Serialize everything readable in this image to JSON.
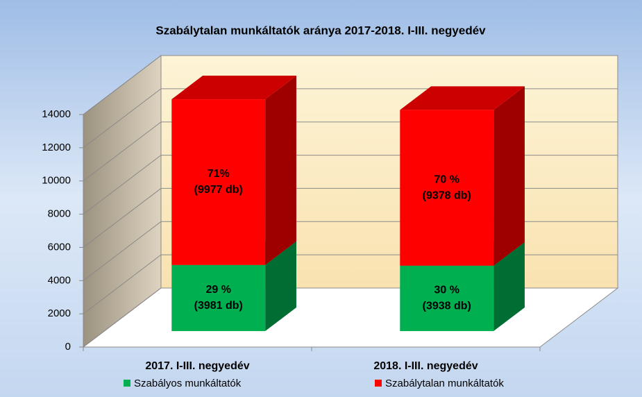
{
  "chart_data": {
    "type": "bar3d_stacked",
    "title": "Szabálytalan munkáltatók aránya 2017-2018. I-III. negyedév",
    "categories": [
      "2017. I-III. negyedév",
      "2018. I-III. negyedév"
    ],
    "series": [
      {
        "name": "Szabályos munkáltatók",
        "color": "#00b050",
        "values": [
          3981,
          3938
        ],
        "value_labels": [
          [
            "29 %",
            "(3981 db)"
          ],
          [
            "30 %",
            "(3938 db)"
          ]
        ]
      },
      {
        "name": "Szabálytalan munkáltatók",
        "color": "#ff0000",
        "values": [
          9977,
          9378
        ],
        "value_labels": [
          [
            "71%",
            "(9977 db)"
          ],
          [
            "70 %",
            "(9378 db)"
          ]
        ]
      }
    ],
    "ylim": [
      0,
      14000
    ],
    "yticks": [
      0,
      2000,
      4000,
      6000,
      8000,
      10000,
      12000,
      14000
    ],
    "grid": true,
    "legend": "bottom"
  }
}
